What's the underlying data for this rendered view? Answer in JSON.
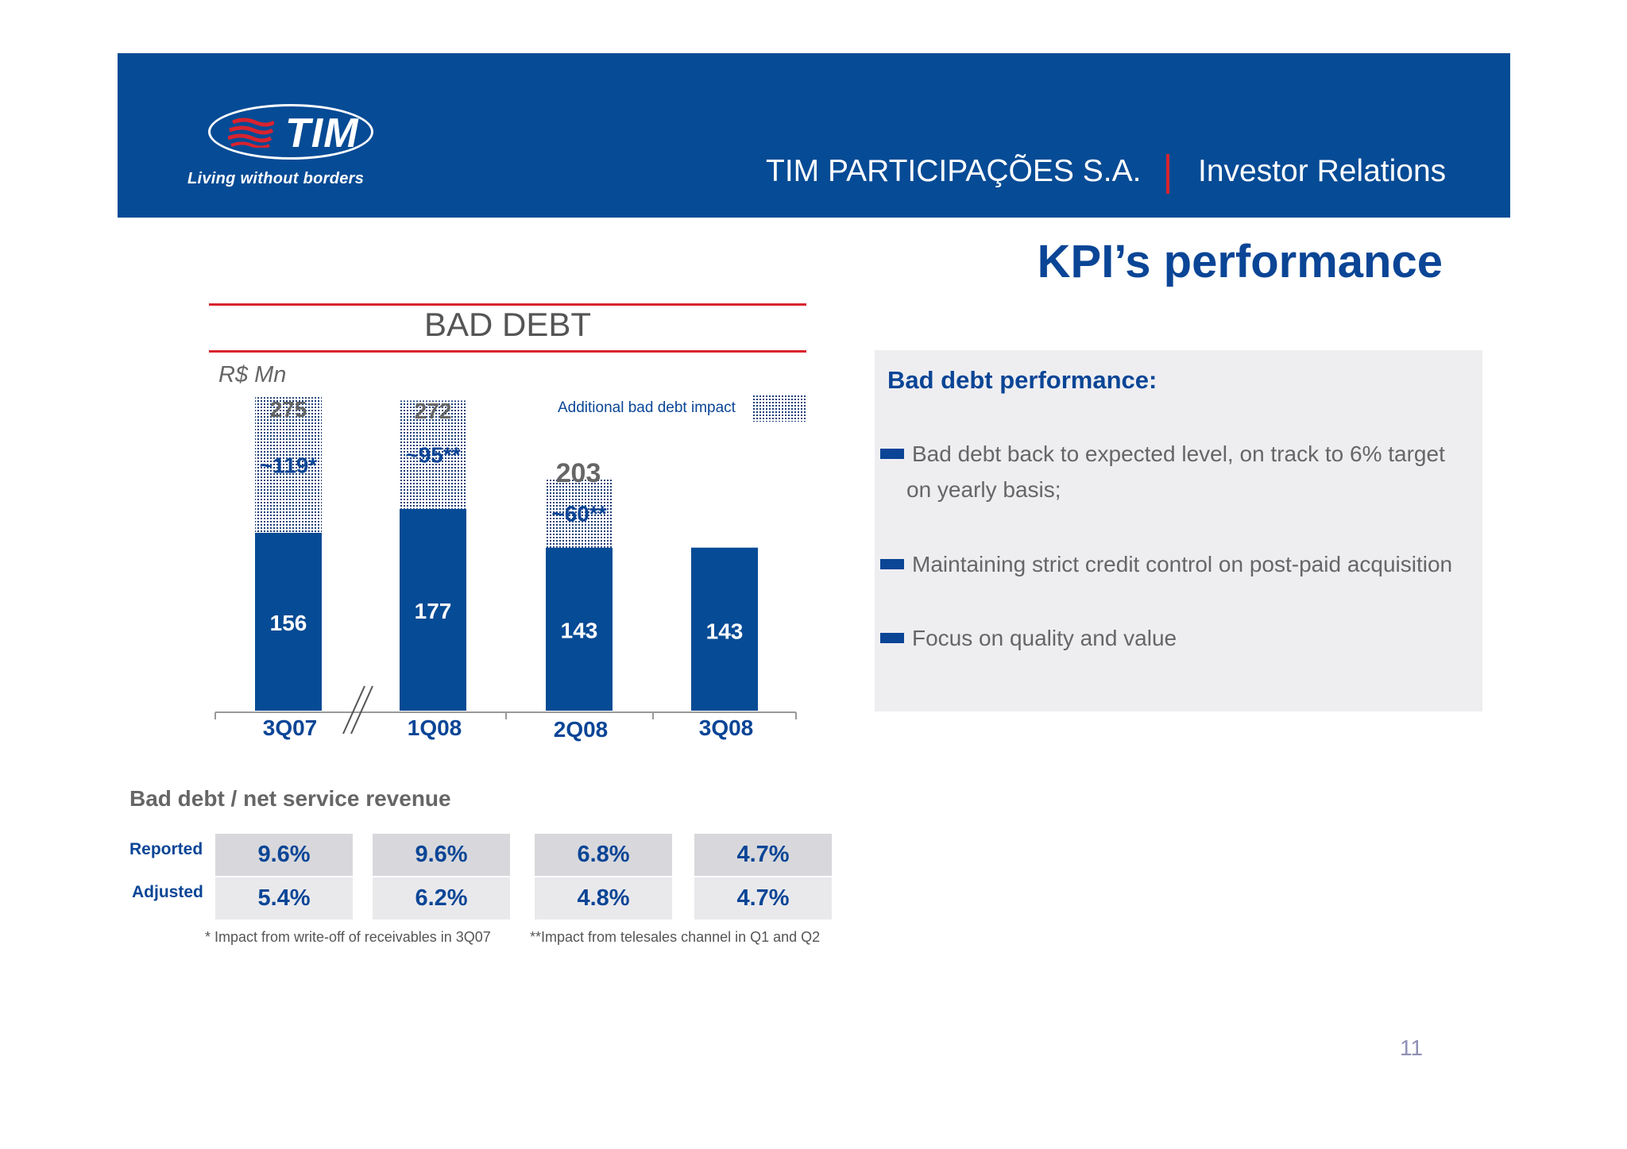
{
  "header": {
    "logo_text": "TIM",
    "tagline": "Living without borders",
    "company": "TIM PARTICIPAÇÕES S.A.",
    "section": "Investor Relations"
  },
  "page_title": "KPI’s performance",
  "chart_data": {
    "type": "bar",
    "title": "BAD DEBT",
    "unit_label": "R$ Mn",
    "categories": [
      "3Q07",
      "1Q08",
      "2Q08",
      "3Q08"
    ],
    "totals": [
      "275",
      "272",
      "203",
      ""
    ],
    "series": [
      {
        "values": [
          156,
          177,
          143,
          143
        ],
        "labels": [
          "156",
          "177",
          "143",
          "143"
        ],
        "color": "#064b95"
      },
      {
        "name": "Additional bad debt impact",
        "values": [
          119,
          95,
          60,
          0
        ],
        "labels": [
          "~119*",
          "~95**",
          "~60**",
          ""
        ],
        "pattern": "dotted"
      }
    ],
    "axis_break_after": "3Q07"
  },
  "panel": {
    "title": "Bad debt performance:",
    "bullets": [
      "Bad debt back to expected level, on track to 6% target on yearly basis;",
      "Maintaining strict credit control on post-paid acquisition",
      "Focus on quality and value"
    ]
  },
  "ratio_table": {
    "title": "Bad debt / net service revenue",
    "rows": [
      {
        "label": "Reported",
        "values": [
          "9.6%",
          "9.6%",
          "6.8%",
          "4.7%"
        ]
      },
      {
        "label": "Adjusted",
        "values": [
          "5.4%",
          "6.2%",
          "4.8%",
          "4.7%"
        ]
      }
    ]
  },
  "footnotes": [
    "* Impact from write-off of receivables in 3Q07",
    "**Impact from telesales channel in Q1 and Q2"
  ],
  "page_number": "11",
  "colors": {
    "brand_blue": "#064b95",
    "accent_red": "#d9232e"
  }
}
